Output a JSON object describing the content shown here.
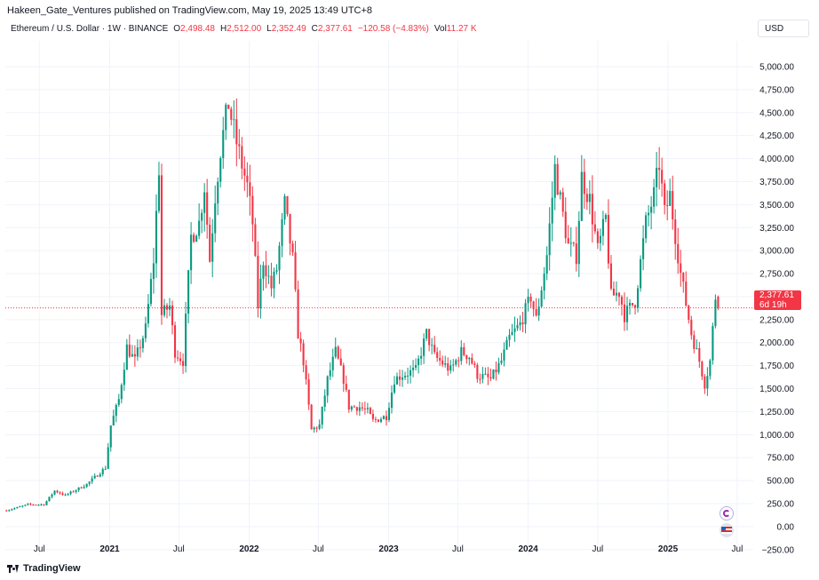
{
  "header": {
    "publish_line": "Hakeen_Gate_Ventures published on TradingView.com, May 19, 2025 13:49 UTC+8"
  },
  "legend": {
    "symbol": "Ethereum / U.S. Dollar · 1W · BINANCE",
    "o_label": "O",
    "o_value": "2,498.48",
    "h_label": "H",
    "h_value": "2,512.00",
    "l_label": "L",
    "l_value": "2,352.49",
    "c_label": "C",
    "c_value": "2,377.61",
    "change": "−120.58 (−4.83%)",
    "vol_label": "Vol",
    "vol_value": "11.27 K"
  },
  "currency_button": "USD",
  "price_tag": {
    "price": "2,377.61",
    "countdown": "6d 19h"
  },
  "brand": "TradingView",
  "colors": {
    "up": "#089981",
    "down": "#f23645",
    "grid": "#f0f3fa",
    "last_line": "#f23645",
    "text": "#131722"
  },
  "chart_data": {
    "type": "candlestick",
    "title": "Ethereum / U.S. Dollar · 1W · BINANCE",
    "interval": "1W",
    "x_ticks": [
      "Jul",
      "2021",
      "Jul",
      "2022",
      "Jul",
      "2023",
      "Jul",
      "2024",
      "Jul",
      "2025",
      "Jul"
    ],
    "x_tick_dates": [
      "2020-07-01",
      "2021-01-01",
      "2021-07-01",
      "2022-01-01",
      "2022-07-01",
      "2023-01-01",
      "2023-07-01",
      "2024-01-01",
      "2024-07-01",
      "2025-01-01",
      "2025-07-01"
    ],
    "y_ticks": [
      "5,000.00",
      "4,750.00",
      "4,500.00",
      "4,250.00",
      "4,000.00",
      "3,750.00",
      "3,500.00",
      "3,250.00",
      "3,000.00",
      "2,750.00",
      "2,500.00",
      "2,250.00",
      "2,000.00",
      "1,750.00",
      "1,500.00",
      "1,250.00",
      "1,000.00",
      "750.00",
      "500.00",
      "250.00",
      "0.00",
      "−250.00"
    ],
    "y_tick_values": [
      5000,
      4750,
      4500,
      4250,
      4000,
      3750,
      3500,
      3250,
      3000,
      2750,
      2500,
      2250,
      2000,
      1750,
      1500,
      1250,
      1000,
      750,
      500,
      250,
      0,
      -250
    ],
    "ylim": [
      -310,
      5280
    ],
    "x_range": [
      "2020-04-03",
      "2025-08-12"
    ],
    "last_price": 2377.61,
    "close_points": [
      [
        "2020-04-06",
        175
      ],
      [
        "2020-06-01",
        240
      ],
      [
        "2020-07-13",
        240
      ],
      [
        "2020-08-10",
        390
      ],
      [
        "2020-09-07",
        340
      ],
      [
        "2020-11-02",
        460
      ],
      [
        "2020-12-21",
        640
      ],
      [
        "2021-01-04",
        1100
      ],
      [
        "2021-01-25",
        1380
      ],
      [
        "2021-02-15",
        1950
      ],
      [
        "2021-03-08",
        1800
      ],
      [
        "2021-04-05",
        2150
      ],
      [
        "2021-04-26",
        2900
      ],
      [
        "2021-05-10",
        3900
      ],
      [
        "2021-05-17",
        2300
      ],
      [
        "2021-06-07",
        2400
      ],
      [
        "2021-06-21",
        1900
      ],
      [
        "2021-07-12",
        1800
      ],
      [
        "2021-08-02",
        3150
      ],
      [
        "2021-08-23",
        3300
      ],
      [
        "2021-09-06",
        3700
      ],
      [
        "2021-09-20",
        2900
      ],
      [
        "2021-10-04",
        3600
      ],
      [
        "2021-10-18",
        4100
      ],
      [
        "2021-11-08",
        4600
      ],
      [
        "2021-11-22",
        4300
      ],
      [
        "2021-12-06",
        4050
      ],
      [
        "2021-12-27",
        3700
      ],
      [
        "2022-01-10",
        3300
      ],
      [
        "2022-01-24",
        2400
      ],
      [
        "2022-02-07",
        2900
      ],
      [
        "2022-02-28",
        2600
      ],
      [
        "2022-03-14",
        2800
      ],
      [
        "2022-04-04",
        3500
      ],
      [
        "2022-04-25",
        2900
      ],
      [
        "2022-05-09",
        2100
      ],
      [
        "2022-05-23",
        1800
      ],
      [
        "2022-06-13",
        1050
      ],
      [
        "2022-07-04",
        1100
      ],
      [
        "2022-07-25",
        1600
      ],
      [
        "2022-08-15",
        1900
      ],
      [
        "2022-09-05",
        1600
      ],
      [
        "2022-09-19",
        1300
      ],
      [
        "2022-10-17",
        1300
      ],
      [
        "2022-11-07",
        1250
      ],
      [
        "2022-11-21",
        1150
      ],
      [
        "2022-12-26",
        1200
      ],
      [
        "2023-01-16",
        1600
      ],
      [
        "2023-02-06",
        1650
      ],
      [
        "2023-03-13",
        1700
      ],
      [
        "2023-04-10",
        2100
      ],
      [
        "2023-05-01",
        1850
      ],
      [
        "2023-06-12",
        1700
      ],
      [
        "2023-07-10",
        1900
      ],
      [
        "2023-07-31",
        1850
      ],
      [
        "2023-08-21",
        1650
      ],
      [
        "2023-09-25",
        1600
      ],
      [
        "2023-10-23",
        1800
      ],
      [
        "2023-11-13",
        2050
      ],
      [
        "2023-12-11",
        2200
      ],
      [
        "2024-01-08",
        2500
      ],
      [
        "2024-01-22",
        2250
      ],
      [
        "2024-02-19",
        2950
      ],
      [
        "2024-03-11",
        3900
      ],
      [
        "2024-03-25",
        3550
      ],
      [
        "2024-04-15",
        3050
      ],
      [
        "2024-05-06",
        2950
      ],
      [
        "2024-05-20",
        3800
      ],
      [
        "2024-06-10",
        3550
      ],
      [
        "2024-07-01",
        3000
      ],
      [
        "2024-07-22",
        3350
      ],
      [
        "2024-08-05",
        2500
      ],
      [
        "2024-08-26",
        2550
      ],
      [
        "2024-09-09",
        2300
      ],
      [
        "2024-10-07",
        2450
      ],
      [
        "2024-11-04",
        3300
      ],
      [
        "2024-11-25",
        3600
      ],
      [
        "2024-12-09",
        3950
      ],
      [
        "2024-12-23",
        3400
      ],
      [
        "2025-01-06",
        3600
      ],
      [
        "2025-02-03",
        2750
      ],
      [
        "2025-03-03",
        2100
      ],
      [
        "2025-03-24",
        1800
      ],
      [
        "2025-04-07",
        1550
      ],
      [
        "2025-04-21",
        1800
      ],
      [
        "2025-05-05",
        2500
      ],
      [
        "2025-05-12",
        2377.61
      ]
    ]
  }
}
